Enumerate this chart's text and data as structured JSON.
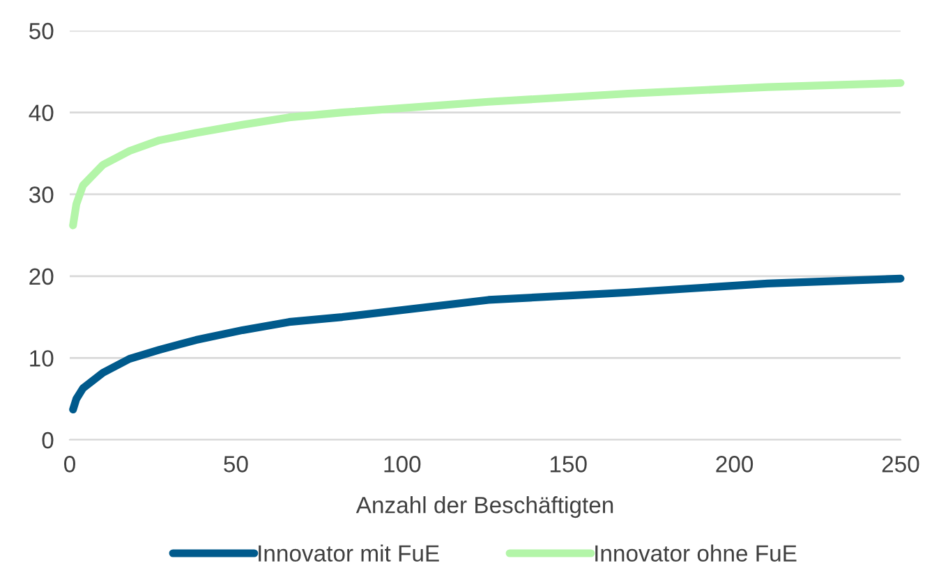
{
  "chart_data": {
    "type": "line",
    "xlabel": "Anzahl der Beschäftigten",
    "x": [
      1,
      2,
      4,
      10,
      18,
      27,
      38,
      52,
      66,
      82,
      126,
      168,
      210,
      250
    ],
    "series": [
      {
        "name": "Innovator mit FuE",
        "color": "#005a8c",
        "values": [
          3.7,
          5.0,
          6.3,
          8.2,
          9.9,
          11.0,
          12.2,
          13.4,
          14.4,
          15.0,
          17.1,
          18.0,
          19.1,
          19.7
        ]
      },
      {
        "name": "Innovator ohne FuE",
        "color": "#b3f5a8",
        "values": [
          26.2,
          28.8,
          31.1,
          33.6,
          35.3,
          36.6,
          37.5,
          38.5,
          39.4,
          40.0,
          41.3,
          42.3,
          43.1,
          43.6
        ]
      }
    ],
    "xlim": [
      0,
      250
    ],
    "xticks": [
      0,
      50,
      100,
      150,
      200,
      250
    ],
    "ylim": [
      0,
      50
    ],
    "yticks": [
      0,
      10,
      20,
      30,
      40,
      50
    ],
    "grid": "y",
    "legend": "bottom",
    "line_style": "solid",
    "marker": "none"
  }
}
